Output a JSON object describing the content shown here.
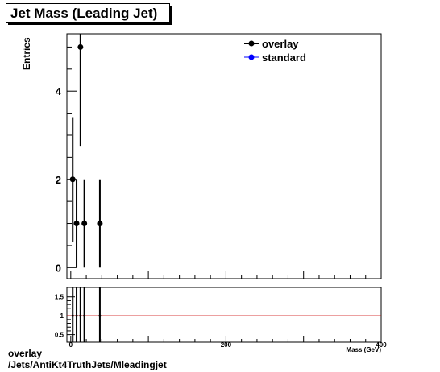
{
  "title": "Jet Mass (Leading Jet)",
  "caption": {
    "line1": "overlay",
    "line2": "/Jets/AntiKt4TruthJets/Mleadingjet"
  },
  "colors": {
    "overlay": "#000000",
    "standard": "#0000ff",
    "ratio_line": "#cc0000"
  },
  "chart_data": [
    {
      "type": "scatter",
      "panel": "main",
      "ylabel": "Entries",
      "xlim": [
        -5,
        400
      ],
      "ylim": [
        -0.25,
        5.3
      ],
      "yticks": [
        0,
        2,
        4
      ],
      "legend_position": "top-right",
      "series": [
        {
          "name": "overlay",
          "x": [
            2.5,
            7.5,
            12.5,
            17.5,
            37.5
          ],
          "y": [
            2,
            1,
            5,
            1,
            1
          ],
          "yerr": [
            1.41,
            1,
            2.24,
            1,
            1
          ]
        },
        {
          "name": "standard",
          "x": [],
          "y": []
        }
      ]
    },
    {
      "type": "line",
      "panel": "ratio",
      "xlabel": "Mass (GeV)",
      "xlim": [
        -5,
        400
      ],
      "ylim": [
        0.3,
        1.75
      ],
      "yticks": [
        0.5,
        1,
        1.5
      ],
      "xticks": [
        0,
        200,
        400
      ],
      "reference_line": 1,
      "points": {
        "x": [
          2.5,
          7.5,
          12.5,
          17.5,
          37.5
        ],
        "y": [
          1,
          1,
          1,
          1,
          1
        ]
      }
    }
  ]
}
